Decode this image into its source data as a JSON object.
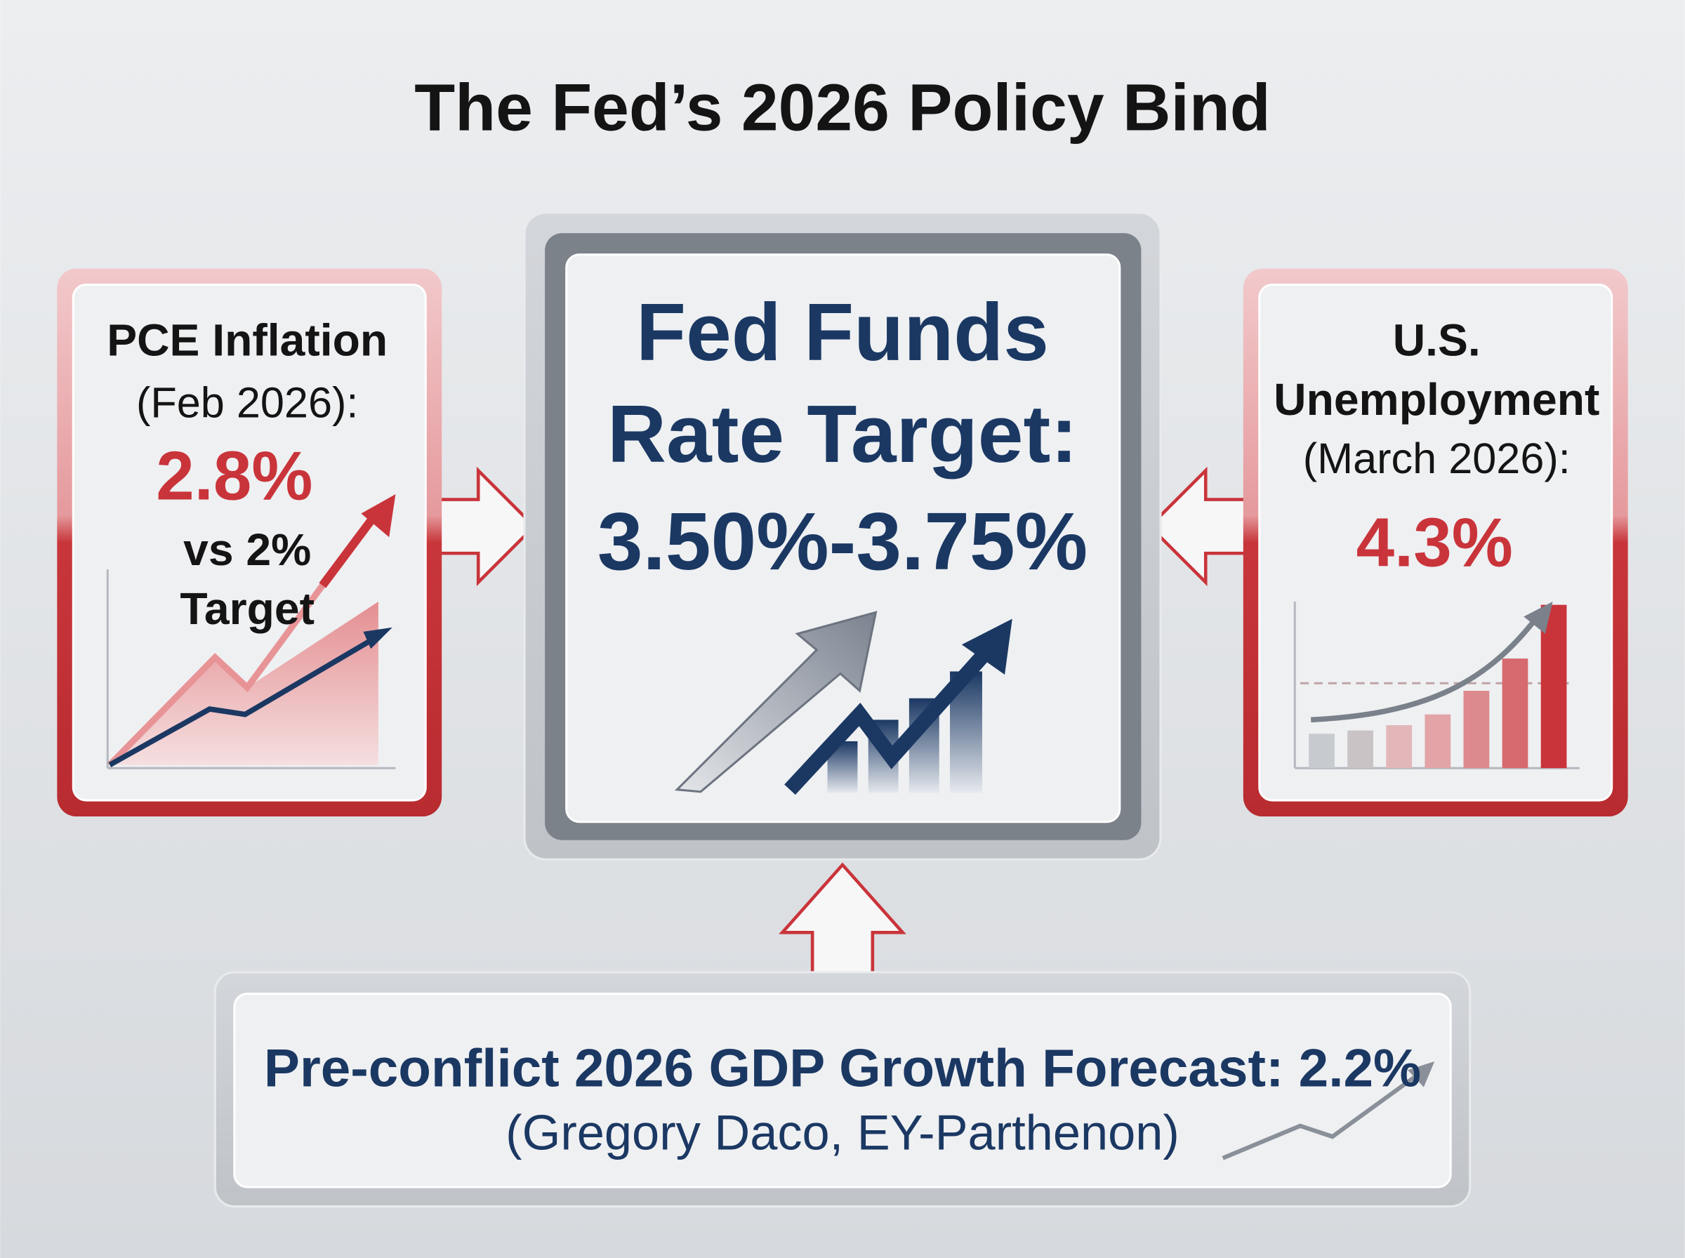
{
  "title": "The Fed’s 2026 Policy Bind",
  "left_panel": {
    "lines": [
      "PCE Inflation",
      "(Feb 2026):",
      "2.8%",
      "vs 2%",
      "Target"
    ]
  },
  "center_panel": {
    "lines": [
      "Fed Funds",
      "Rate Target:",
      "3.50%-3.75%"
    ]
  },
  "right_panel": {
    "lines": [
      "U.S.",
      "Unemployment",
      "(March 2026):",
      "4.3%"
    ]
  },
  "bottom_panel": {
    "lines": [
      "Pre-conflict 2026 GDP Growth Forecast: 2.2%",
      "(Gregory Daco, EY-Parthenon)"
    ]
  }
}
